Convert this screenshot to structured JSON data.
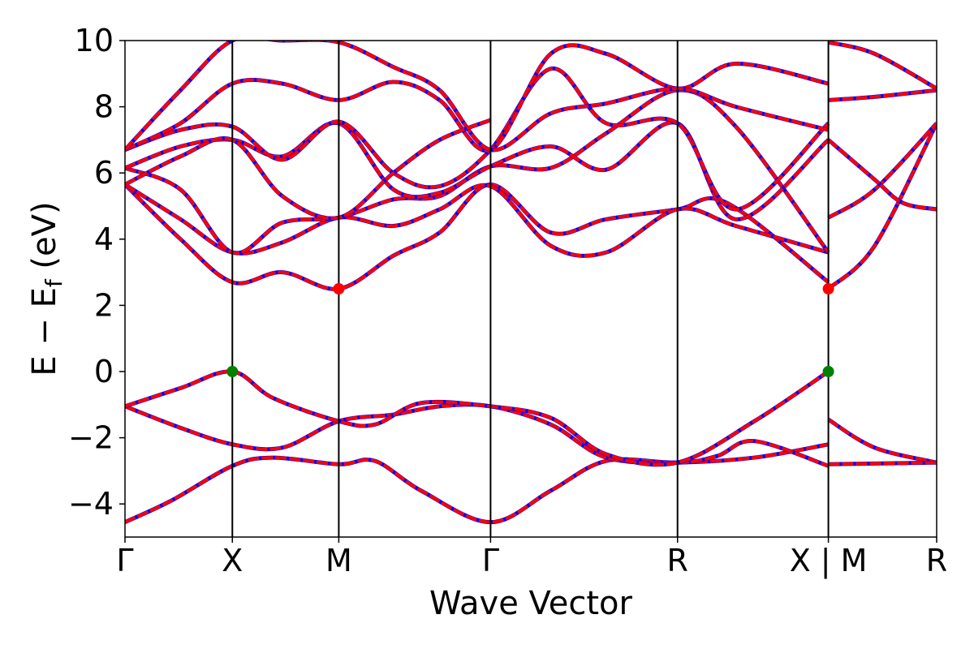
{
  "chart_data": {
    "type": "line",
    "title": "",
    "xlabel": "Wave Vector",
    "ylabel": {
      "main": "E − E",
      "sub": "f",
      "unit": " (eV)"
    },
    "ylim": [
      -5,
      10
    ],
    "xlim": [
      0,
      7.6
    ],
    "y_ticks": [
      -4,
      -2,
      0,
      2,
      4,
      6,
      8,
      10
    ],
    "y_tick_labels": [
      "−4",
      "−2",
      "0",
      "2",
      "4",
      "6",
      "8",
      "10"
    ],
    "kpoints": [
      {
        "x": 0.0,
        "label": "Γ"
      },
      {
        "x": 1.16,
        "label": "X"
      },
      {
        "x": 2.31,
        "label": "M"
      },
      {
        "x": 3.95,
        "label": "Γ"
      },
      {
        "x": 5.97,
        "label": "R"
      },
      {
        "x": 7.6,
        "label": "X | M"
      },
      {
        "x": 8.77,
        "label": "R"
      }
    ],
    "line_colors": {
      "primary": "#ff0000",
      "secondary": "#0000ff"
    },
    "markers": [
      {
        "name": "vbm-1",
        "x": 1.16,
        "y": 0.0,
        "color": "#008000"
      },
      {
        "name": "vbm-2",
        "x": 7.6,
        "y": 0.0,
        "color": "#008000"
      },
      {
        "name": "cbm-1",
        "x": 2.31,
        "y": 2.5,
        "color": "#ff0000"
      },
      {
        "name": "cbm-2",
        "x": 7.6,
        "y": 2.5,
        "color": "#ff0000"
      }
    ],
    "bands": [
      {
        "name": "band-1",
        "points": [
          [
            0,
            -4.55
          ],
          [
            0.5,
            -3.9
          ],
          [
            1.16,
            -2.85
          ],
          [
            1.6,
            -2.6
          ],
          [
            2.31,
            -2.8
          ],
          [
            2.7,
            -2.7
          ],
          [
            3.2,
            -3.6
          ],
          [
            3.95,
            -4.55
          ],
          [
            4.6,
            -3.6
          ],
          [
            5.2,
            -2.7
          ],
          [
            5.97,
            -2.75
          ],
          [
            6.8,
            -2.6
          ],
          [
            7.6,
            -2.2
          ]
        ]
      },
      {
        "name": "band-2",
        "points": [
          [
            0,
            -1.05
          ],
          [
            0.6,
            -1.7
          ],
          [
            1.16,
            -2.2
          ],
          [
            1.7,
            -2.3
          ],
          [
            2.31,
            -1.5
          ],
          [
            2.9,
            -1.3
          ],
          [
            3.4,
            -1.05
          ],
          [
            3.95,
            -1.05
          ],
          [
            4.6,
            -1.6
          ],
          [
            5.2,
            -2.6
          ],
          [
            5.97,
            -2.75
          ],
          [
            6.4,
            -2.55
          ],
          [
            6.8,
            -2.1
          ],
          [
            7.6,
            -2.85
          ]
        ]
      },
      {
        "name": "band-3",
        "points": [
          [
            0,
            -1.05
          ],
          [
            0.6,
            -0.5
          ],
          [
            1.16,
            0.0
          ],
          [
            1.6,
            -0.8
          ],
          [
            2.31,
            -1.5
          ],
          [
            2.7,
            -1.6
          ],
          [
            3.2,
            -0.95
          ],
          [
            3.95,
            -1.05
          ],
          [
            4.6,
            -1.4
          ],
          [
            5.2,
            -2.5
          ],
          [
            5.97,
            -2.75
          ],
          [
            6.8,
            -1.5
          ],
          [
            7.6,
            0.0
          ]
        ]
      },
      {
        "name": "band-4",
        "points": [
          [
            0,
            5.65
          ],
          [
            0.6,
            4.0
          ],
          [
            1.16,
            2.7
          ],
          [
            1.7,
            3.0
          ],
          [
            2.31,
            2.5
          ],
          [
            2.9,
            3.5
          ],
          [
            3.4,
            4.2
          ],
          [
            3.95,
            5.65
          ],
          [
            4.6,
            4.2
          ],
          [
            5.2,
            4.6
          ],
          [
            5.97,
            4.9
          ],
          [
            6.5,
            5.1
          ],
          [
            7.6,
            2.7
          ]
        ]
      },
      {
        "name": "band-5",
        "points": [
          [
            0,
            5.65
          ],
          [
            0.6,
            4.6
          ],
          [
            1.16,
            3.6
          ],
          [
            1.7,
            3.9
          ],
          [
            2.31,
            4.65
          ],
          [
            2.9,
            4.4
          ],
          [
            3.4,
            4.9
          ],
          [
            3.95,
            5.6
          ],
          [
            4.6,
            3.8
          ],
          [
            5.2,
            3.6
          ],
          [
            5.97,
            4.9
          ],
          [
            6.6,
            4.4
          ],
          [
            7.6,
            3.6
          ]
        ]
      },
      {
        "name": "band-6",
        "points": [
          [
            0,
            6.15
          ],
          [
            0.6,
            5.5
          ],
          [
            1.16,
            3.6
          ],
          [
            1.7,
            4.5
          ],
          [
            2.31,
            4.65
          ],
          [
            2.9,
            5.2
          ],
          [
            3.4,
            5.3
          ],
          [
            3.95,
            6.2
          ],
          [
            4.6,
            6.15
          ],
          [
            5.2,
            7.2
          ],
          [
            5.97,
            8.5
          ],
          [
            6.6,
            7.4
          ],
          [
            7.6,
            3.6
          ]
        ]
      },
      {
        "name": "band-7",
        "points": [
          [
            0,
            6.15
          ],
          [
            0.6,
            6.8
          ],
          [
            1.16,
            7.0
          ],
          [
            1.7,
            6.5
          ],
          [
            2.31,
            7.5
          ],
          [
            2.9,
            5.5
          ],
          [
            3.4,
            5.4
          ],
          [
            3.95,
            6.2
          ],
          [
            4.6,
            6.8
          ],
          [
            5.2,
            6.1
          ],
          [
            5.97,
            7.5
          ],
          [
            6.6,
            4.6
          ],
          [
            7.6,
            7.0
          ]
        ]
      },
      {
        "name": "band-8",
        "points": [
          [
            0,
            6.7
          ],
          [
            0.6,
            7.3
          ],
          [
            1.16,
            7.4
          ],
          [
            1.7,
            6.4
          ],
          [
            2.31,
            7.55
          ],
          [
            2.9,
            6.0
          ],
          [
            3.4,
            5.6
          ],
          [
            3.95,
            6.7
          ],
          [
            4.6,
            9.15
          ],
          [
            5.2,
            7.5
          ],
          [
            5.97,
            7.5
          ],
          [
            6.6,
            4.9
          ],
          [
            7.6,
            7.5
          ]
        ]
      },
      {
        "name": "band-9",
        "points": [
          [
            0,
            6.7
          ],
          [
            0.6,
            7.5
          ],
          [
            1.16,
            8.7
          ],
          [
            1.7,
            8.7
          ],
          [
            2.31,
            8.2
          ],
          [
            2.9,
            8.75
          ],
          [
            3.4,
            8.2
          ],
          [
            3.95,
            6.7
          ],
          [
            4.6,
            9.6
          ],
          [
            5.2,
            9.6
          ],
          [
            5.97,
            8.55
          ],
          [
            6.6,
            9.3
          ],
          [
            7.6,
            8.7
          ]
        ]
      },
      {
        "name": "band-10",
        "points": [
          [
            0,
            6.7
          ],
          [
            0.6,
            8.5
          ],
          [
            1.16,
            10.0
          ],
          [
            1.7,
            10.0
          ],
          [
            2.31,
            9.95
          ],
          [
            2.9,
            9.2
          ],
          [
            3.4,
            8.5
          ],
          [
            3.95,
            6.7
          ],
          [
            4.6,
            7.8
          ],
          [
            5.2,
            8.1
          ],
          [
            5.97,
            8.55
          ],
          [
            6.6,
            8.0
          ],
          [
            7.6,
            7.3
          ]
        ]
      },
      {
        "name": "band-11",
        "points": [
          [
            0,
            5.65
          ],
          [
            0.6,
            6.5
          ],
          [
            1.16,
            7.0
          ],
          [
            1.7,
            5.3
          ],
          [
            2.31,
            4.65
          ],
          [
            2.9,
            6.0
          ],
          [
            3.4,
            7.0
          ],
          [
            3.95,
            7.6
          ]
        ]
      },
      {
        "name": "band-12",
        "points": [
          [
            7.6,
            2.5
          ],
          [
            8.1,
            3.8
          ],
          [
            8.77,
            7.5
          ]
        ]
      },
      {
        "name": "band-13",
        "points": [
          [
            7.6,
            4.65
          ],
          [
            8.1,
            5.5
          ],
          [
            8.77,
            7.5
          ]
        ]
      },
      {
        "name": "band-14",
        "points": [
          [
            7.6,
            7.0
          ],
          [
            8.1,
            5.8
          ],
          [
            8.4,
            5.1
          ],
          [
            8.77,
            4.9
          ]
        ]
      },
      {
        "name": "band-15",
        "points": [
          [
            7.6,
            8.2
          ],
          [
            8.1,
            8.3
          ],
          [
            8.77,
            8.5
          ]
        ]
      },
      {
        "name": "band-16",
        "points": [
          [
            7.6,
            9.95
          ],
          [
            8.1,
            9.6
          ],
          [
            8.77,
            8.55
          ]
        ]
      },
      {
        "name": "band-17",
        "points": [
          [
            7.6,
            -1.45
          ],
          [
            8.1,
            -2.3
          ],
          [
            8.77,
            -2.75
          ]
        ]
      },
      {
        "name": "band-18",
        "points": [
          [
            7.6,
            -2.8
          ],
          [
            8.77,
            -2.75
          ]
        ]
      }
    ]
  }
}
